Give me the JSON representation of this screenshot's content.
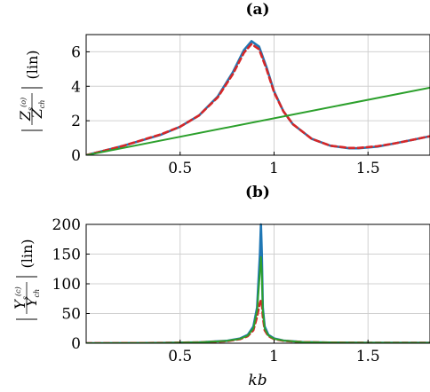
{
  "chart_data": [
    {
      "type": "line",
      "title": "(a)",
      "ylabel": "|Z_s^(o) / Z_ch| (lin)",
      "xlabel": "",
      "xlim": [
        0.0,
        1.83
      ],
      "ylim": [
        0,
        7
      ],
      "xticks": [
        "0.5",
        "1",
        "1.5"
      ],
      "yticks": [
        "0",
        "2",
        "4",
        "6"
      ],
      "grid": true,
      "colors": {
        "blue": "#1f77b4",
        "red": "#d62728",
        "green": "#2ca02c"
      },
      "series": [
        {
          "style": "solid",
          "color": "#1f77b4",
          "x": [
            0.0,
            0.2,
            0.4,
            0.5,
            0.6,
            0.7,
            0.78,
            0.84,
            0.88,
            0.92,
            0.96,
            1.0,
            1.05,
            1.1,
            1.2,
            1.3,
            1.4,
            1.45,
            1.55,
            1.65,
            1.75,
            1.83
          ],
          "y": [
            0.0,
            0.55,
            1.2,
            1.65,
            2.3,
            3.4,
            4.8,
            6.1,
            6.62,
            6.3,
            5.1,
            3.7,
            2.55,
            1.8,
            0.95,
            0.55,
            0.4,
            0.4,
            0.5,
            0.7,
            0.92,
            1.1
          ]
        },
        {
          "style": "dashed",
          "color": "#d62728",
          "x": [
            0.0,
            0.2,
            0.4,
            0.5,
            0.6,
            0.7,
            0.78,
            0.84,
            0.88,
            0.92,
            0.96,
            1.0,
            1.05,
            1.1,
            1.2,
            1.3,
            1.4,
            1.45,
            1.55,
            1.65,
            1.75,
            1.83
          ],
          "y": [
            0.0,
            0.55,
            1.22,
            1.65,
            2.3,
            3.35,
            4.7,
            5.95,
            6.45,
            6.15,
            5.0,
            3.65,
            2.55,
            1.8,
            0.95,
            0.55,
            0.42,
            0.42,
            0.52,
            0.7,
            0.92,
            1.1
          ]
        },
        {
          "style": "solid",
          "color": "#2ca02c",
          "x": [
            0.0,
            1.83
          ],
          "y": [
            0.0,
            3.92
          ]
        }
      ]
    },
    {
      "type": "line",
      "title": "(b)",
      "ylabel": "|Y_s^(c) / Y_ch| (lin)",
      "xlabel": "kb",
      "xlim": [
        0.0,
        1.83
      ],
      "ylim": [
        0,
        200
      ],
      "xticks": [
        "0.5",
        "1",
        "1.5"
      ],
      "yticks": [
        "0",
        "50",
        "100",
        "150",
        "200"
      ],
      "grid": true,
      "colors": {
        "blue": "#1f77b4",
        "red": "#d62728",
        "green": "#2ca02c"
      },
      "series": [
        {
          "style": "solid",
          "color": "#1f77b4",
          "x": [
            0.0,
            0.4,
            0.6,
            0.75,
            0.82,
            0.86,
            0.89,
            0.91,
            0.925,
            0.93,
            0.935,
            0.94,
            0.95,
            0.97,
            1.0,
            1.05,
            1.15,
            1.3,
            1.5,
            1.83
          ],
          "y": [
            0.0,
            0.5,
            1.5,
            4.0,
            8.0,
            14.0,
            28.0,
            60.0,
            150.0,
            200.0,
            150.0,
            60.0,
            28.0,
            14.0,
            8.0,
            4.5,
            2.0,
            1.0,
            0.8,
            0.6
          ]
        },
        {
          "style": "dashed",
          "color": "#d62728",
          "x": [
            0.0,
            0.4,
            0.6,
            0.75,
            0.82,
            0.86,
            0.89,
            0.91,
            0.925,
            0.93,
            0.935,
            0.94,
            0.95,
            0.97,
            1.0,
            1.05,
            1.15,
            1.3,
            1.5,
            1.83
          ],
          "y": [
            0.0,
            0.5,
            1.5,
            3.5,
            7.0,
            12.0,
            22.0,
            45.0,
            68.0,
            72.0,
            68.0,
            45.0,
            22.0,
            12.0,
            7.0,
            4.0,
            2.0,
            1.0,
            0.8,
            0.6
          ]
        },
        {
          "style": "solid",
          "color": "#2ca02c",
          "x": [
            0.0,
            0.4,
            0.6,
            0.75,
            0.82,
            0.86,
            0.89,
            0.91,
            0.925,
            0.93,
            0.935,
            0.94,
            0.95,
            0.97,
            1.0,
            1.05,
            1.15,
            1.3,
            1.5,
            1.83
          ],
          "y": [
            0.0,
            0.5,
            1.5,
            4.0,
            7.5,
            13.0,
            25.0,
            55.0,
            120.0,
            145.0,
            120.0,
            55.0,
            25.0,
            13.0,
            7.5,
            4.5,
            2.0,
            1.0,
            0.8,
            0.6
          ]
        }
      ]
    }
  ]
}
